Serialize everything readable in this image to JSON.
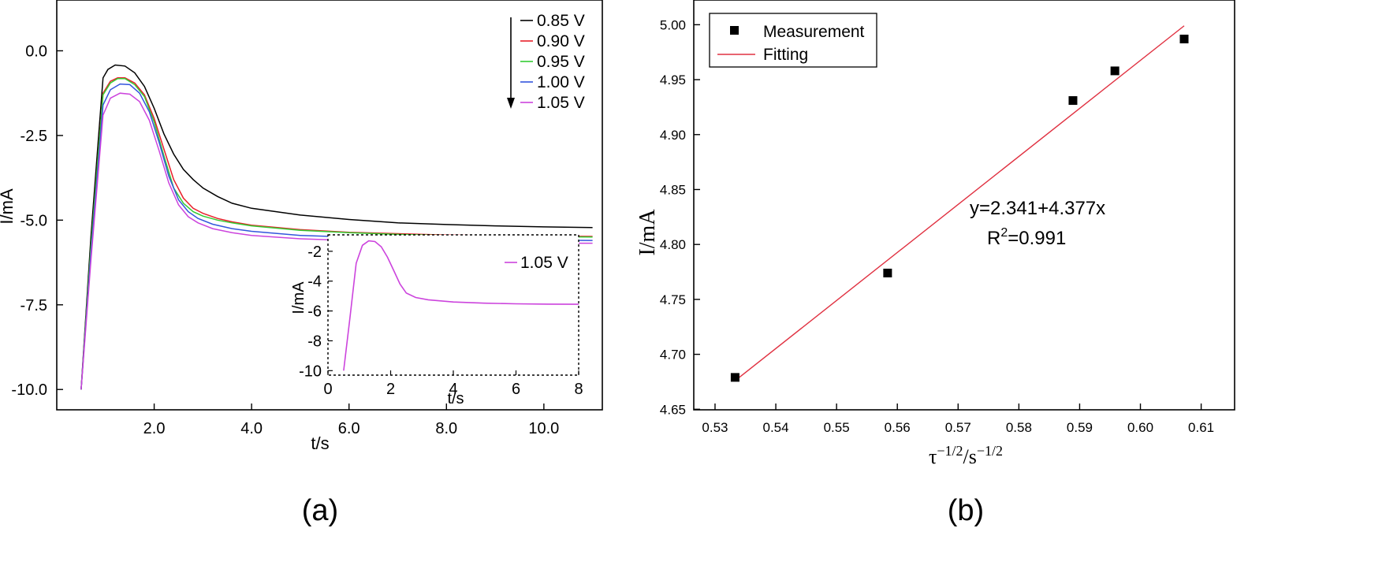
{
  "colors": {
    "v085": "#000000",
    "v090": "#e8202a",
    "v095": "#33cc33",
    "v100": "#3355dd",
    "v105": "#cc44dd",
    "fit": "#e03040",
    "marker": "#000000"
  },
  "chart_data": [
    {
      "type": "line",
      "panel_label": "(a)",
      "xlabel": "t/s",
      "ylabel": "I/mA",
      "xlim": [
        0.0,
        11.2
      ],
      "ylim": [
        -10.6,
        1.5
      ],
      "x_ticks": [
        2.0,
        4.0,
        6.0,
        8.0,
        10.0
      ],
      "x_tick_labels": [
        "2.0",
        "4.0",
        "6.0",
        "8.0",
        "10.0"
      ],
      "y_ticks": [
        0.0,
        -2.5,
        -5.0,
        -7.5,
        -10.0
      ],
      "y_tick_labels": [
        "0.0",
        "-2.5",
        "-5.0",
        "-7.5",
        "-10.0"
      ],
      "legend_position": "top-right",
      "series": [
        {
          "name": "0.85 V",
          "color_key": "v085",
          "x": [
            0.5,
            0.7,
            0.95,
            1.05,
            1.2,
            1.4,
            1.6,
            1.8,
            2.0,
            2.2,
            2.4,
            2.6,
            2.8,
            3.0,
            3.3,
            3.6,
            4.0,
            5.0,
            6.0,
            7.0,
            8.0,
            9.0,
            10.0,
            11.0
          ],
          "y": [
            -10.0,
            -5.5,
            -0.8,
            -0.55,
            -0.42,
            -0.45,
            -0.65,
            -1.05,
            -1.7,
            -2.45,
            -3.05,
            -3.5,
            -3.8,
            -4.05,
            -4.3,
            -4.5,
            -4.65,
            -4.85,
            -4.98,
            -5.08,
            -5.13,
            -5.17,
            -5.2,
            -5.22
          ]
        },
        {
          "name": "0.90 V",
          "color_key": "v090",
          "x": [
            0.5,
            0.7,
            0.95,
            1.1,
            1.25,
            1.4,
            1.6,
            1.8,
            2.0,
            2.2,
            2.4,
            2.6,
            2.8,
            3.0,
            3.3,
            3.6,
            4.0,
            5.0,
            6.0,
            7.0,
            8.0,
            9.0,
            10.0,
            11.0
          ],
          "y": [
            -10.0,
            -5.8,
            -1.25,
            -0.9,
            -0.8,
            -0.8,
            -0.95,
            -1.3,
            -2.0,
            -2.9,
            -3.8,
            -4.35,
            -4.65,
            -4.8,
            -4.95,
            -5.05,
            -5.15,
            -5.28,
            -5.36,
            -5.4,
            -5.44,
            -5.46,
            -5.47,
            -5.48
          ]
        },
        {
          "name": "0.95 V",
          "color_key": "v095",
          "x": [
            0.5,
            0.7,
            0.95,
            1.1,
            1.25,
            1.4,
            1.6,
            1.8,
            2.0,
            2.2,
            2.4,
            2.6,
            2.8,
            3.0,
            3.3,
            3.6,
            4.0,
            5.0,
            6.0,
            7.0,
            8.0,
            9.0,
            10.0,
            11.0
          ],
          "y": [
            -10.0,
            -5.8,
            -1.3,
            -0.95,
            -0.82,
            -0.82,
            -1.0,
            -1.35,
            -2.1,
            -3.1,
            -4.05,
            -4.5,
            -4.75,
            -4.88,
            -5.0,
            -5.08,
            -5.17,
            -5.3,
            -5.37,
            -5.42,
            -5.45,
            -5.47,
            -5.49,
            -5.5
          ]
        },
        {
          "name": "1.00 V",
          "color_key": "v100",
          "x": [
            0.5,
            0.7,
            0.95,
            1.1,
            1.3,
            1.5,
            1.7,
            1.9,
            2.1,
            2.3,
            2.5,
            2.7,
            2.9,
            3.2,
            3.6,
            4.0,
            5.0,
            6.0,
            7.0,
            8.0,
            9.0,
            10.0,
            11.0
          ],
          "y": [
            -10.0,
            -6.0,
            -1.6,
            -1.15,
            -0.98,
            -1.0,
            -1.25,
            -1.8,
            -2.7,
            -3.7,
            -4.4,
            -4.75,
            -4.95,
            -5.12,
            -5.25,
            -5.33,
            -5.45,
            -5.5,
            -5.54,
            -5.56,
            -5.58,
            -5.59,
            -5.6
          ]
        },
        {
          "name": "1.05 V",
          "color_key": "v105",
          "x": [
            0.5,
            0.7,
            0.95,
            1.1,
            1.3,
            1.5,
            1.7,
            1.9,
            2.1,
            2.3,
            2.5,
            2.7,
            2.9,
            3.2,
            3.6,
            4.0,
            5.0,
            6.0,
            7.0,
            8.0,
            9.0,
            10.0,
            11.0
          ],
          "y": [
            -10.0,
            -6.2,
            -1.9,
            -1.4,
            -1.25,
            -1.28,
            -1.5,
            -2.05,
            -2.95,
            -3.9,
            -4.55,
            -4.9,
            -5.08,
            -5.25,
            -5.37,
            -5.45,
            -5.55,
            -5.6,
            -5.63,
            -5.65,
            -5.67,
            -5.68,
            -5.68
          ]
        }
      ],
      "annotation_arrow": "downward arrow next to legend, pointing from 0.85 V to 1.05 V",
      "inset": {
        "xlabel": "t/s",
        "ylabel": "I/mA",
        "xlim": [
          0,
          8
        ],
        "ylim": [
          -10.3,
          -0.9
        ],
        "x_ticks": [
          0,
          2,
          4,
          6,
          8
        ],
        "y_ticks": [
          -2,
          -4,
          -6,
          -8,
          -10
        ],
        "legend": "1.05 V",
        "series": {
          "name": "1.05 V",
          "color_key": "v105",
          "x": [
            0.5,
            0.7,
            0.9,
            1.1,
            1.3,
            1.5,
            1.7,
            1.9,
            2.1,
            2.3,
            2.5,
            2.8,
            3.2,
            4.0,
            5.0,
            6.0,
            7.0,
            8.0
          ],
          "y": [
            -10.0,
            -6.5,
            -2.8,
            -1.6,
            -1.3,
            -1.35,
            -1.7,
            -2.4,
            -3.3,
            -4.2,
            -4.8,
            -5.1,
            -5.25,
            -5.4,
            -5.48,
            -5.52,
            -5.54,
            -5.55
          ]
        }
      }
    },
    {
      "type": "scatter",
      "panel_label": "(b)",
      "xlabel_parts": [
        "τ",
        "−1/2",
        "/s",
        "−1/2"
      ],
      "ylabel": "I/mA",
      "xlim": [
        0.5265,
        0.6155
      ],
      "ylim": [
        4.6495,
        5.0225
      ],
      "x_ticks": [
        0.53,
        0.54,
        0.55,
        0.56,
        0.57,
        0.58,
        0.59,
        0.6,
        0.61
      ],
      "x_tick_labels": [
        "0.53",
        "0.54",
        "0.55",
        "0.56",
        "0.57",
        "0.58",
        "0.59",
        "0.60",
        "0.61"
      ],
      "y_ticks": [
        4.65,
        4.7,
        4.75,
        4.8,
        4.85,
        4.9,
        4.95,
        5.0
      ],
      "y_tick_labels": [
        "4.65",
        "4.70",
        "4.75",
        "4.80",
        "4.85",
        "4.90",
        "4.95",
        "5.00"
      ],
      "legend_position": "top-left",
      "series": [
        {
          "name": "Measurement",
          "kind": "markers",
          "x": [
            0.5333,
            0.5584,
            0.5889,
            0.5958,
            0.6072
          ],
          "y": [
            4.679,
            4.774,
            4.931,
            4.958,
            4.987
          ]
        },
        {
          "name": "Fitting",
          "kind": "line",
          "x": [
            0.5333,
            0.6072
          ],
          "y": [
            4.676,
            4.999
          ]
        }
      ],
      "annotation": {
        "equation": "y=2.341+4.377x",
        "r2_prefix": "R",
        "r2_sup": "2",
        "r2_suffix": "=0.991"
      }
    }
  ]
}
